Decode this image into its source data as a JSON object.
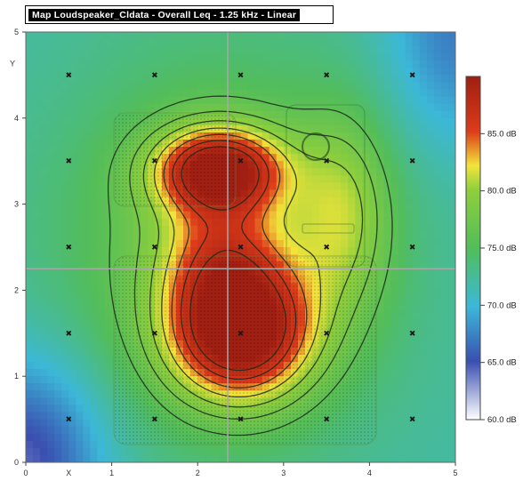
{
  "title": "Map Loudspeaker_Cldata - Overall Leq - 1.25 kHz - Linear",
  "colors": {
    "low": "#ffffff",
    "c65": "#3a4fb0",
    "c70": "#3cb8d8",
    "c75": "#52bd5a",
    "c80": "#8fcf3c",
    "c82": "#f2e43a",
    "c85": "#dd3b1a",
    "high": "#a01e12",
    "contour": "#1a2a1a",
    "crosshair": "#a8a8a8"
  },
  "chart_data": {
    "type": "heatmap",
    "title": "Map Loudspeaker_Cldata - Overall Leq - 1.25 kHz - Linear",
    "xlabel": "",
    "ylabel": "Y",
    "xlim": [
      0,
      5
    ],
    "ylim": [
      0,
      5
    ],
    "x_ticks": [
      "0",
      "X",
      "1",
      "2",
      "3",
      "4",
      "5"
    ],
    "y_ticks": [
      "0",
      "1",
      "2",
      "3",
      "4",
      "5"
    ],
    "colorbar": {
      "range": [
        60,
        90
      ],
      "labels": [
        "85.0 dB",
        "80.0 dB",
        "75.0 dB",
        "70.0 dB",
        "65.0 dB",
        "60.0 dB"
      ],
      "values": [
        85,
        80,
        75,
        70,
        65,
        60
      ]
    },
    "crosshair": {
      "x": 2.35,
      "y": 2.25
    },
    "peaks": [
      {
        "x": 2.5,
        "y": 1.5,
        "level": 88
      },
      {
        "x": 2.25,
        "y": 3.4,
        "level": 87
      }
    ],
    "contour_levels": [
      76,
      78,
      80,
      82,
      84,
      86,
      88
    ],
    "measurement_points": [
      [
        0.5,
        4.5
      ],
      [
        1.5,
        4.5
      ],
      [
        2.5,
        4.5
      ],
      [
        3.5,
        4.5
      ],
      [
        4.5,
        4.5
      ],
      [
        0.5,
        3.5
      ],
      [
        1.5,
        3.5
      ],
      [
        2.5,
        3.5
      ],
      [
        3.5,
        3.5
      ],
      [
        4.5,
        3.5
      ],
      [
        0.5,
        2.5
      ],
      [
        1.5,
        2.5
      ],
      [
        2.5,
        2.5
      ],
      [
        3.5,
        2.5
      ],
      [
        4.5,
        2.5
      ],
      [
        0.5,
        1.5
      ],
      [
        1.5,
        1.5
      ],
      [
        2.5,
        1.5
      ],
      [
        3.5,
        1.5
      ],
      [
        4.5,
        1.5
      ],
      [
        0.5,
        0.5
      ],
      [
        1.5,
        0.5
      ],
      [
        2.5,
        0.5
      ],
      [
        3.5,
        0.5
      ],
      [
        4.5,
        0.5
      ]
    ]
  }
}
